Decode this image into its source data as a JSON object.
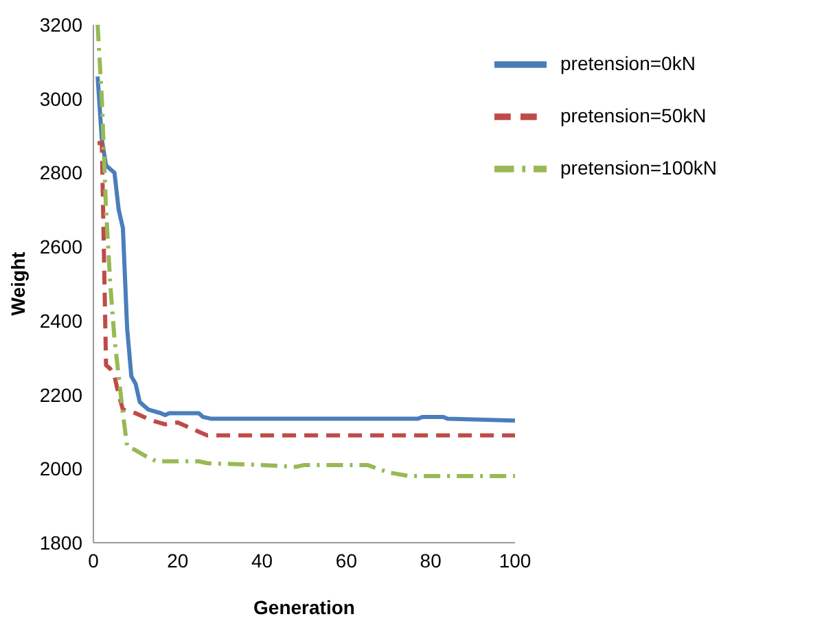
{
  "chart_data": {
    "type": "line",
    "xlabel": "Generation",
    "ylabel": "Weight",
    "xlim": [
      0,
      100
    ],
    "xticks": [
      0,
      20,
      40,
      60,
      80,
      100
    ],
    "ylim": [
      1800,
      3200
    ],
    "yticks": [
      1800,
      2000,
      2200,
      2400,
      2600,
      2800,
      3000,
      3200
    ],
    "grid": false,
    "legend": "top right",
    "marker": "none",
    "series": [
      {
        "name": "pretension=0kN",
        "color": "#4a7ebb",
        "line_style": "solid",
        "x": [
          1,
          2,
          3,
          5,
          6,
          7,
          8,
          9,
          10,
          11,
          12,
          13,
          16,
          17,
          18,
          25,
          26,
          28,
          77,
          78,
          83,
          84,
          100
        ],
        "values": [
          3060,
          2890,
          2820,
          2800,
          2700,
          2650,
          2380,
          2250,
          2230,
          2180,
          2170,
          2160,
          2150,
          2145,
          2150,
          2150,
          2140,
          2135,
          2135,
          2140,
          2140,
          2135,
          2130
        ]
      },
      {
        "name": "pretension=50kN",
        "color": "#be4b48",
        "line_style": "dashed",
        "x": [
          1,
          2,
          3,
          4,
          5,
          6,
          7,
          10,
          12,
          14,
          17,
          20,
          23,
          25,
          27,
          100
        ],
        "values": [
          2880,
          2880,
          2280,
          2270,
          2250,
          2200,
          2160,
          2150,
          2140,
          2130,
          2120,
          2125,
          2110,
          2100,
          2090,
          2090
        ]
      },
      {
        "name": "pretension=100kN",
        "color": "#98b954",
        "line_style": "dashdot",
        "x": [
          1,
          2,
          3,
          4,
          5,
          6,
          7,
          8,
          10,
          13,
          15,
          25,
          27,
          40,
          48,
          50,
          65,
          70,
          75,
          100
        ],
        "values": [
          3200,
          3000,
          2700,
          2500,
          2350,
          2250,
          2150,
          2060,
          2050,
          2030,
          2020,
          2020,
          2015,
          2010,
          2005,
          2010,
          2010,
          1990,
          1980,
          1980
        ]
      }
    ]
  }
}
